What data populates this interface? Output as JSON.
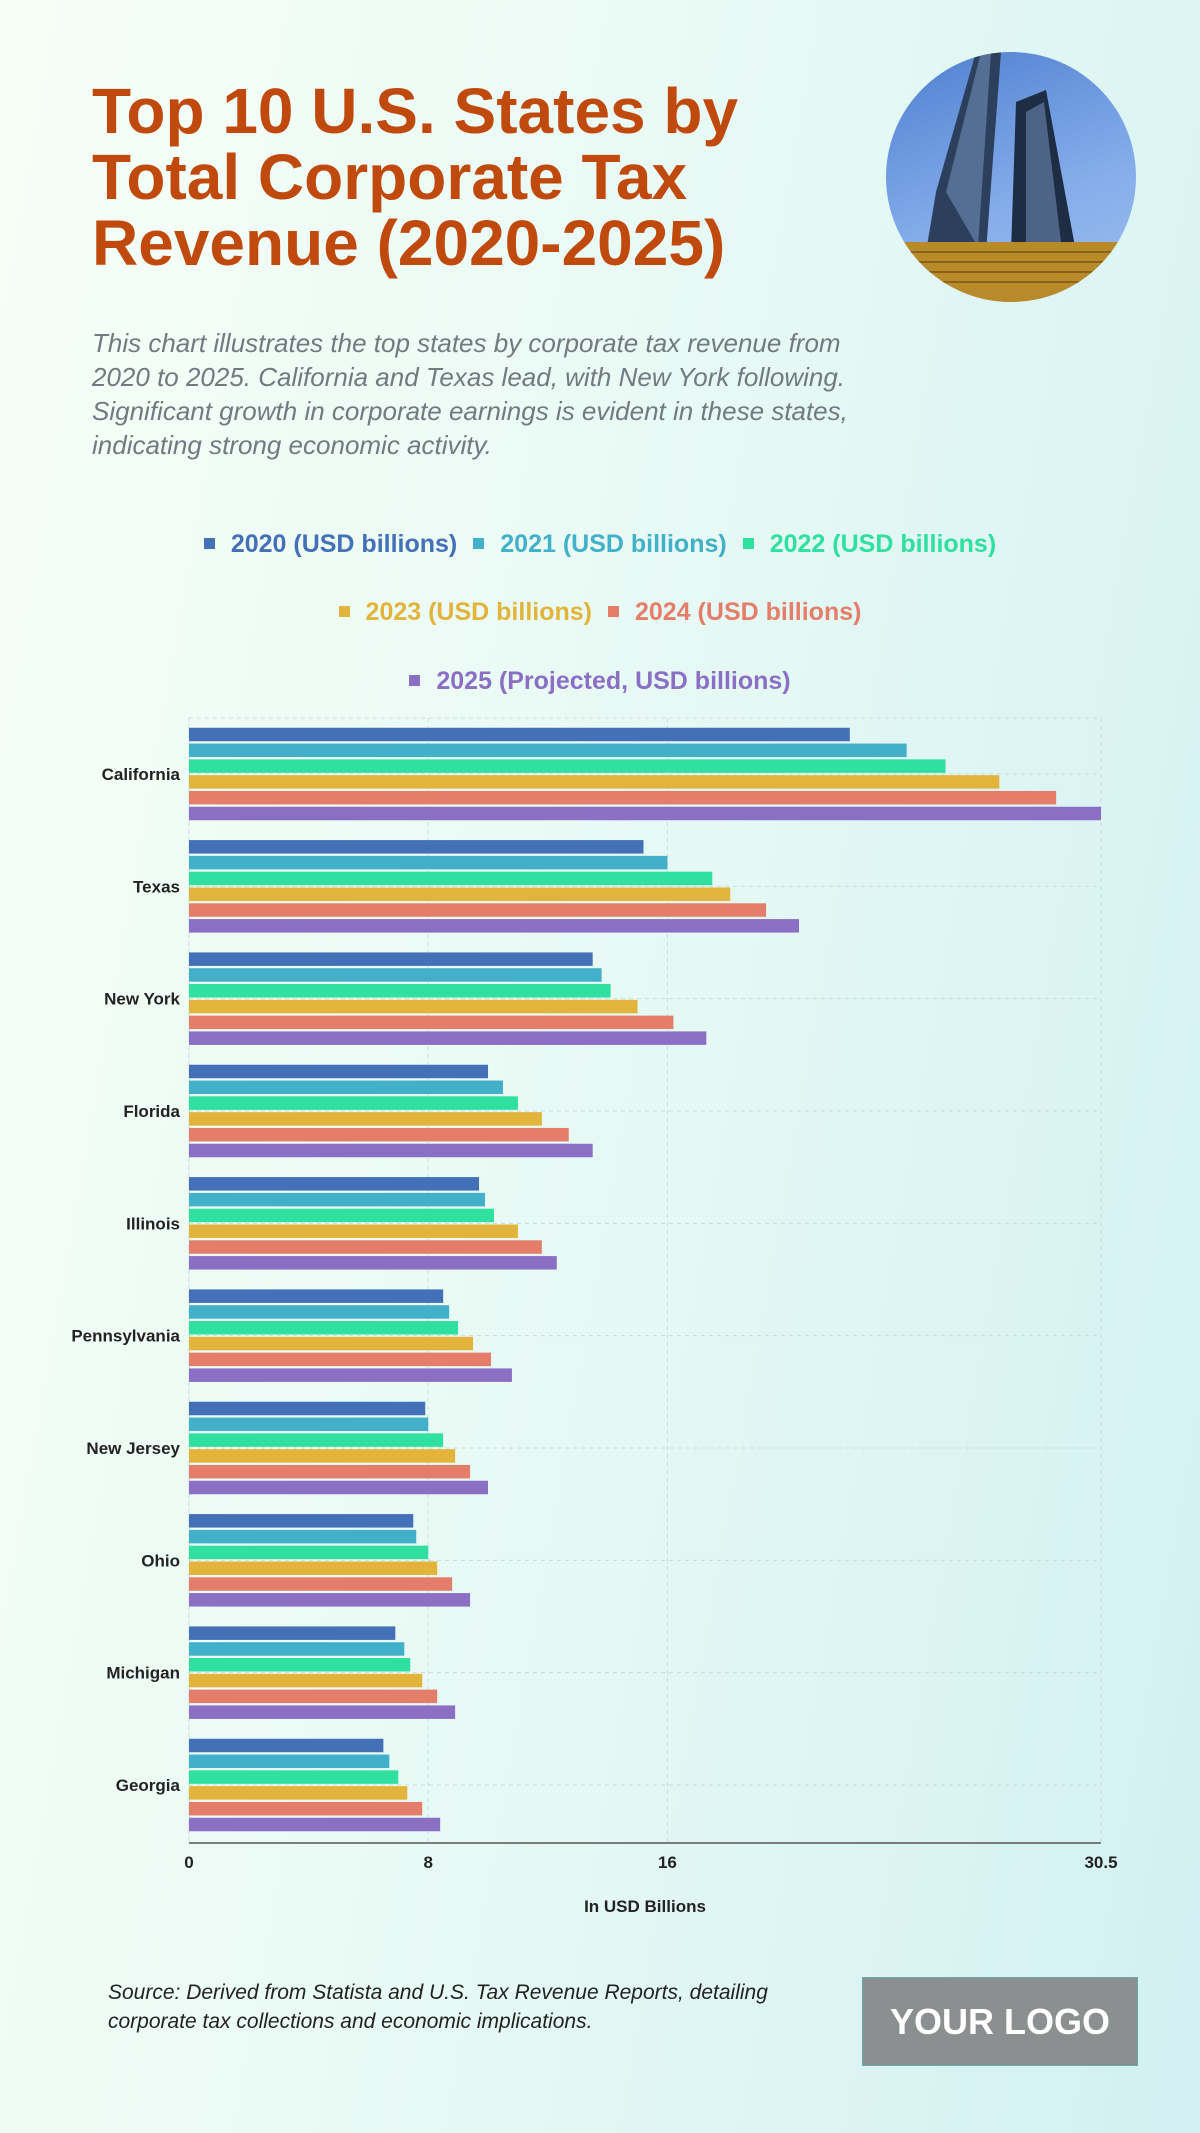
{
  "title": "Top 10 U.S. States by Total Corporate Tax Revenue (2020-2025)",
  "subtitle": "This chart illustrates the top states by corporate tax revenue from 2020 to 2025. California and Texas lead, with New York following. Significant growth in corporate earnings is evident in these states, indicating strong economic activity.",
  "source": "Source: Derived from Statista and U.S. Tax Revenue Reports, detailing corporate tax collections and economic implications.",
  "logo_text": "YOUR LOGO",
  "photo_icon": "skyscraper-photo",
  "chart_data": {
    "type": "bar",
    "orientation": "horizontal",
    "xlabel": "In USD Billions",
    "xlim": [
      0,
      30.5
    ],
    "xticks": [
      "0",
      "8",
      "16",
      "30.5"
    ],
    "grid": true,
    "legend_placement": "top",
    "categories": [
      "California",
      "Texas",
      "New York",
      "Florida",
      "Illinois",
      "Pennsylvania",
      "New Jersey",
      "Ohio",
      "Michigan",
      "Georgia"
    ],
    "series": [
      {
        "name": "2020 (USD billions)",
        "color": "#4470b8",
        "values": [
          22.1,
          15.2,
          13.5,
          10.0,
          9.7,
          8.5,
          7.9,
          7.5,
          6.9,
          6.5
        ]
      },
      {
        "name": "2021 (USD billions)",
        "color": "#42b0c8",
        "values": [
          24.0,
          16.0,
          13.8,
          10.5,
          9.9,
          8.7,
          8.0,
          7.6,
          7.2,
          6.7
        ]
      },
      {
        "name": "2022 (USD billions)",
        "color": "#2fe0a0",
        "values": [
          25.3,
          17.5,
          14.1,
          11.0,
          10.2,
          9.0,
          8.5,
          8.0,
          7.4,
          7.0
        ]
      },
      {
        "name": "2023 (USD billions)",
        "color": "#e2b43c",
        "values": [
          27.1,
          18.1,
          15.0,
          11.8,
          11.0,
          9.5,
          8.9,
          8.3,
          7.8,
          7.3
        ]
      },
      {
        "name": "2024 (USD billions)",
        "color": "#e47e6a",
        "values": [
          29.0,
          19.3,
          16.2,
          12.7,
          11.8,
          10.1,
          9.4,
          8.8,
          8.3,
          7.8
        ]
      },
      {
        "name": "2025 (Projected, USD billions)",
        "color": "#8a6fc4",
        "values": [
          30.5,
          20.4,
          17.3,
          13.5,
          12.3,
          10.8,
          10.0,
          9.4,
          8.9,
          8.4
        ]
      }
    ]
  }
}
